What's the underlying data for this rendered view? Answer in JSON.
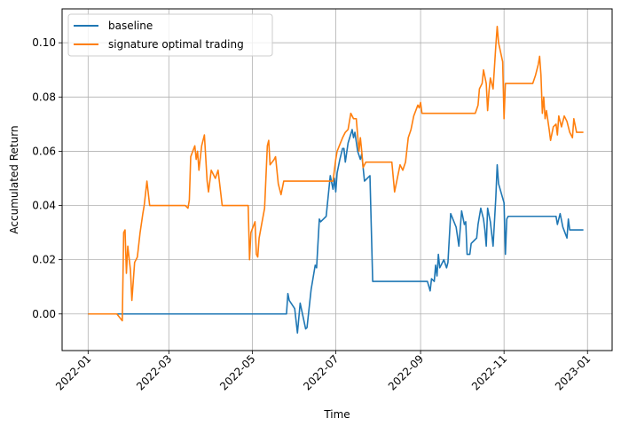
{
  "chart_data": {
    "type": "line",
    "xlabel": "Time",
    "ylabel": "Accumulated Return",
    "x_range": [
      "2021-12-13",
      "2023-01-19"
    ],
    "ylim": [
      -0.0135,
      0.1125
    ],
    "x_ticks": [
      {
        "date": "2022-01-01",
        "label": "2022-01"
      },
      {
        "date": "2022-03-01",
        "label": "2022-03"
      },
      {
        "date": "2022-05-01",
        "label": "2022-05"
      },
      {
        "date": "2022-07-01",
        "label": "2022-07"
      },
      {
        "date": "2022-09-01",
        "label": "2022-09"
      },
      {
        "date": "2022-11-01",
        "label": "2022-11"
      },
      {
        "date": "2023-01-01",
        "label": "2023-01"
      }
    ],
    "y_ticks": [
      {
        "value": 0.0,
        "label": "0.00"
      },
      {
        "value": 0.02,
        "label": "0.02"
      },
      {
        "value": 0.04,
        "label": "0.04"
      },
      {
        "value": 0.06,
        "label": "0.06"
      },
      {
        "value": 0.08,
        "label": "0.08"
      },
      {
        "value": 0.1,
        "label": "0.10"
      }
    ],
    "grid": true,
    "legend": "top-left",
    "series": [
      {
        "name": "baseline",
        "color": "#1f77b4",
        "points": [
          [
            "2022-01-01",
            0.0
          ],
          [
            "2022-05-26",
            0.0
          ],
          [
            "2022-05-27",
            0.0075
          ],
          [
            "2022-05-28",
            0.005
          ],
          [
            "2022-06-01",
            0.002
          ],
          [
            "2022-06-03",
            -0.007
          ],
          [
            "2022-06-05",
            0.004
          ],
          [
            "2022-06-09",
            -0.0055
          ],
          [
            "2022-06-10",
            -0.005
          ],
          [
            "2022-06-13",
            0.009
          ],
          [
            "2022-06-16",
            0.018
          ],
          [
            "2022-06-17",
            0.017
          ],
          [
            "2022-06-19",
            0.035
          ],
          [
            "2022-06-20",
            0.034
          ],
          [
            "2022-06-22",
            0.035
          ],
          [
            "2022-06-24",
            0.036
          ],
          [
            "2022-06-27",
            0.051
          ],
          [
            "2022-06-29",
            0.046
          ],
          [
            "2022-06-30",
            0.05
          ],
          [
            "2022-07-01",
            0.045
          ],
          [
            "2022-07-02",
            0.052
          ],
          [
            "2022-07-04",
            0.057
          ],
          [
            "2022-07-06",
            0.061
          ],
          [
            "2022-07-07",
            0.061
          ],
          [
            "2022-07-08",
            0.056
          ],
          [
            "2022-07-10",
            0.063
          ],
          [
            "2022-07-13",
            0.068
          ],
          [
            "2022-07-14",
            0.065
          ],
          [
            "2022-07-15",
            0.067
          ],
          [
            "2022-07-17",
            0.06
          ],
          [
            "2022-07-19",
            0.057
          ],
          [
            "2022-07-20",
            0.059
          ],
          [
            "2022-07-22",
            0.049
          ],
          [
            "2022-07-26",
            0.051
          ],
          [
            "2022-07-28",
            0.012
          ],
          [
            "2022-09-06",
            0.012
          ],
          [
            "2022-09-08",
            0.0085
          ],
          [
            "2022-09-09",
            0.013
          ],
          [
            "2022-09-11",
            0.012
          ],
          [
            "2022-09-12",
            0.018
          ],
          [
            "2022-09-13",
            0.014
          ],
          [
            "2022-09-14",
            0.022
          ],
          [
            "2022-09-15",
            0.017
          ],
          [
            "2022-09-18",
            0.02
          ],
          [
            "2022-09-20",
            0.017
          ],
          [
            "2022-09-21",
            0.019
          ],
          [
            "2022-09-23",
            0.037
          ],
          [
            "2022-09-27",
            0.032
          ],
          [
            "2022-09-29",
            0.025
          ],
          [
            "2022-10-01",
            0.038
          ],
          [
            "2022-10-03",
            0.033
          ],
          [
            "2022-10-04",
            0.034
          ],
          [
            "2022-10-05",
            0.022
          ],
          [
            "2022-10-07",
            0.022
          ],
          [
            "2022-10-08",
            0.026
          ],
          [
            "2022-10-10",
            0.027
          ],
          [
            "2022-10-12",
            0.028
          ],
          [
            "2022-10-13",
            0.033
          ],
          [
            "2022-10-15",
            0.039
          ],
          [
            "2022-10-17",
            0.035
          ],
          [
            "2022-10-18",
            0.031
          ],
          [
            "2022-10-19",
            0.025
          ],
          [
            "2022-10-20",
            0.039
          ],
          [
            "2022-10-22",
            0.034
          ],
          [
            "2022-10-24",
            0.025
          ],
          [
            "2022-10-26",
            0.043
          ],
          [
            "2022-10-27",
            0.055
          ],
          [
            "2022-10-28",
            0.048
          ],
          [
            "2022-11-01",
            0.041
          ],
          [
            "2022-11-02",
            0.022
          ],
          [
            "2022-11-03",
            0.035
          ],
          [
            "2022-11-04",
            0.036
          ],
          [
            "2022-12-07",
            0.036
          ],
          [
            "2022-12-09",
            0.036
          ],
          [
            "2022-12-10",
            0.033
          ],
          [
            "2022-12-12",
            0.037
          ],
          [
            "2022-12-14",
            0.032
          ],
          [
            "2022-12-17",
            0.028
          ],
          [
            "2022-12-18",
            0.035
          ],
          [
            "2022-12-19",
            0.031
          ],
          [
            "2022-12-29",
            0.031
          ]
        ]
      },
      {
        "name": "signature optimal trading",
        "color": "#ff7f0e",
        "points": [
          [
            "2022-01-01",
            0.0
          ],
          [
            "2022-01-22",
            0.0
          ],
          [
            "2022-01-26",
            -0.0025
          ],
          [
            "2022-01-27",
            0.03
          ],
          [
            "2022-01-28",
            0.031
          ],
          [
            "2022-01-29",
            0.015
          ],
          [
            "2022-01-30",
            0.025
          ],
          [
            "2022-02-01",
            0.016
          ],
          [
            "2022-02-02",
            0.005
          ],
          [
            "2022-02-04",
            0.019
          ],
          [
            "2022-02-06",
            0.021
          ],
          [
            "2022-02-08",
            0.03
          ],
          [
            "2022-02-10",
            0.037
          ],
          [
            "2022-02-11",
            0.04
          ],
          [
            "2022-02-13",
            0.049
          ],
          [
            "2022-02-15",
            0.04
          ],
          [
            "2022-03-13",
            0.04
          ],
          [
            "2022-03-15",
            0.039
          ],
          [
            "2022-03-16",
            0.042
          ],
          [
            "2022-03-17",
            0.058
          ],
          [
            "2022-03-20",
            0.062
          ],
          [
            "2022-03-21",
            0.057
          ],
          [
            "2022-03-22",
            0.06
          ],
          [
            "2022-03-23",
            0.053
          ],
          [
            "2022-03-25",
            0.062
          ],
          [
            "2022-03-27",
            0.066
          ],
          [
            "2022-03-29",
            0.049
          ],
          [
            "2022-03-30",
            0.045
          ],
          [
            "2022-04-01",
            0.053
          ],
          [
            "2022-04-03",
            0.051
          ],
          [
            "2022-04-04",
            0.05
          ],
          [
            "2022-04-06",
            0.053
          ],
          [
            "2022-04-09",
            0.04
          ],
          [
            "2022-04-28",
            0.04
          ],
          [
            "2022-04-29",
            0.02
          ],
          [
            "2022-04-30",
            0.03
          ],
          [
            "2022-05-03",
            0.034
          ],
          [
            "2022-05-04",
            0.022
          ],
          [
            "2022-05-05",
            0.021
          ],
          [
            "2022-05-06",
            0.028
          ],
          [
            "2022-05-10",
            0.039
          ],
          [
            "2022-05-12",
            0.062
          ],
          [
            "2022-05-13",
            0.064
          ],
          [
            "2022-05-14",
            0.055
          ],
          [
            "2022-05-17",
            0.057
          ],
          [
            "2022-05-18",
            0.058
          ],
          [
            "2022-05-20",
            0.048
          ],
          [
            "2022-05-22",
            0.044
          ],
          [
            "2022-05-24",
            0.049
          ],
          [
            "2022-06-29",
            0.049
          ],
          [
            "2022-07-01",
            0.057
          ],
          [
            "2022-07-02",
            0.06
          ],
          [
            "2022-07-06",
            0.065
          ],
          [
            "2022-07-08",
            0.067
          ],
          [
            "2022-07-10",
            0.068
          ],
          [
            "2022-07-12",
            0.074
          ],
          [
            "2022-07-14",
            0.072
          ],
          [
            "2022-07-16",
            0.072
          ],
          [
            "2022-07-18",
            0.06
          ],
          [
            "2022-07-19",
            0.065
          ],
          [
            "2022-07-20",
            0.06
          ],
          [
            "2022-07-21",
            0.054
          ],
          [
            "2022-07-23",
            0.056
          ],
          [
            "2022-07-26",
            0.056
          ],
          [
            "2022-08-11",
            0.056
          ],
          [
            "2022-08-13",
            0.045
          ],
          [
            "2022-08-15",
            0.05
          ],
          [
            "2022-08-17",
            0.055
          ],
          [
            "2022-08-19",
            0.053
          ],
          [
            "2022-08-21",
            0.056
          ],
          [
            "2022-08-23",
            0.065
          ],
          [
            "2022-08-25",
            0.068
          ],
          [
            "2022-08-27",
            0.073
          ],
          [
            "2022-08-30",
            0.077
          ],
          [
            "2022-08-31",
            0.076
          ],
          [
            "2022-09-01",
            0.078
          ],
          [
            "2022-09-02",
            0.074
          ],
          [
            "2022-10-11",
            0.074
          ],
          [
            "2022-10-13",
            0.077
          ],
          [
            "2022-10-14",
            0.083
          ],
          [
            "2022-10-16",
            0.085
          ],
          [
            "2022-10-17",
            0.09
          ],
          [
            "2022-10-19",
            0.085
          ],
          [
            "2022-10-20",
            0.075
          ],
          [
            "2022-10-21",
            0.082
          ],
          [
            "2022-10-22",
            0.087
          ],
          [
            "2022-10-24",
            0.083
          ],
          [
            "2022-10-26",
            0.099
          ],
          [
            "2022-10-27",
            0.106
          ],
          [
            "2022-10-28",
            0.1
          ],
          [
            "2022-10-31",
            0.093
          ],
          [
            "2022-11-01",
            0.072
          ],
          [
            "2022-11-02",
            0.085
          ],
          [
            "2022-11-22",
            0.085
          ],
          [
            "2022-11-24",
            0.088
          ],
          [
            "2022-11-26",
            0.092
          ],
          [
            "2022-11-27",
            0.095
          ],
          [
            "2022-11-28",
            0.088
          ],
          [
            "2022-11-29",
            0.074
          ],
          [
            "2022-11-30",
            0.08
          ],
          [
            "2022-12-01",
            0.072
          ],
          [
            "2022-12-02",
            0.075
          ],
          [
            "2022-12-04",
            0.068
          ],
          [
            "2022-12-05",
            0.064
          ],
          [
            "2022-12-07",
            0.069
          ],
          [
            "2022-12-09",
            0.07
          ],
          [
            "2022-12-10",
            0.066
          ],
          [
            "2022-12-11",
            0.073
          ],
          [
            "2022-12-13",
            0.069
          ],
          [
            "2022-12-15",
            0.073
          ],
          [
            "2022-12-17",
            0.071
          ],
          [
            "2022-12-19",
            0.067
          ],
          [
            "2022-12-21",
            0.065
          ],
          [
            "2022-12-22",
            0.072
          ],
          [
            "2022-12-24",
            0.067
          ],
          [
            "2022-12-29",
            0.067
          ]
        ]
      }
    ]
  }
}
